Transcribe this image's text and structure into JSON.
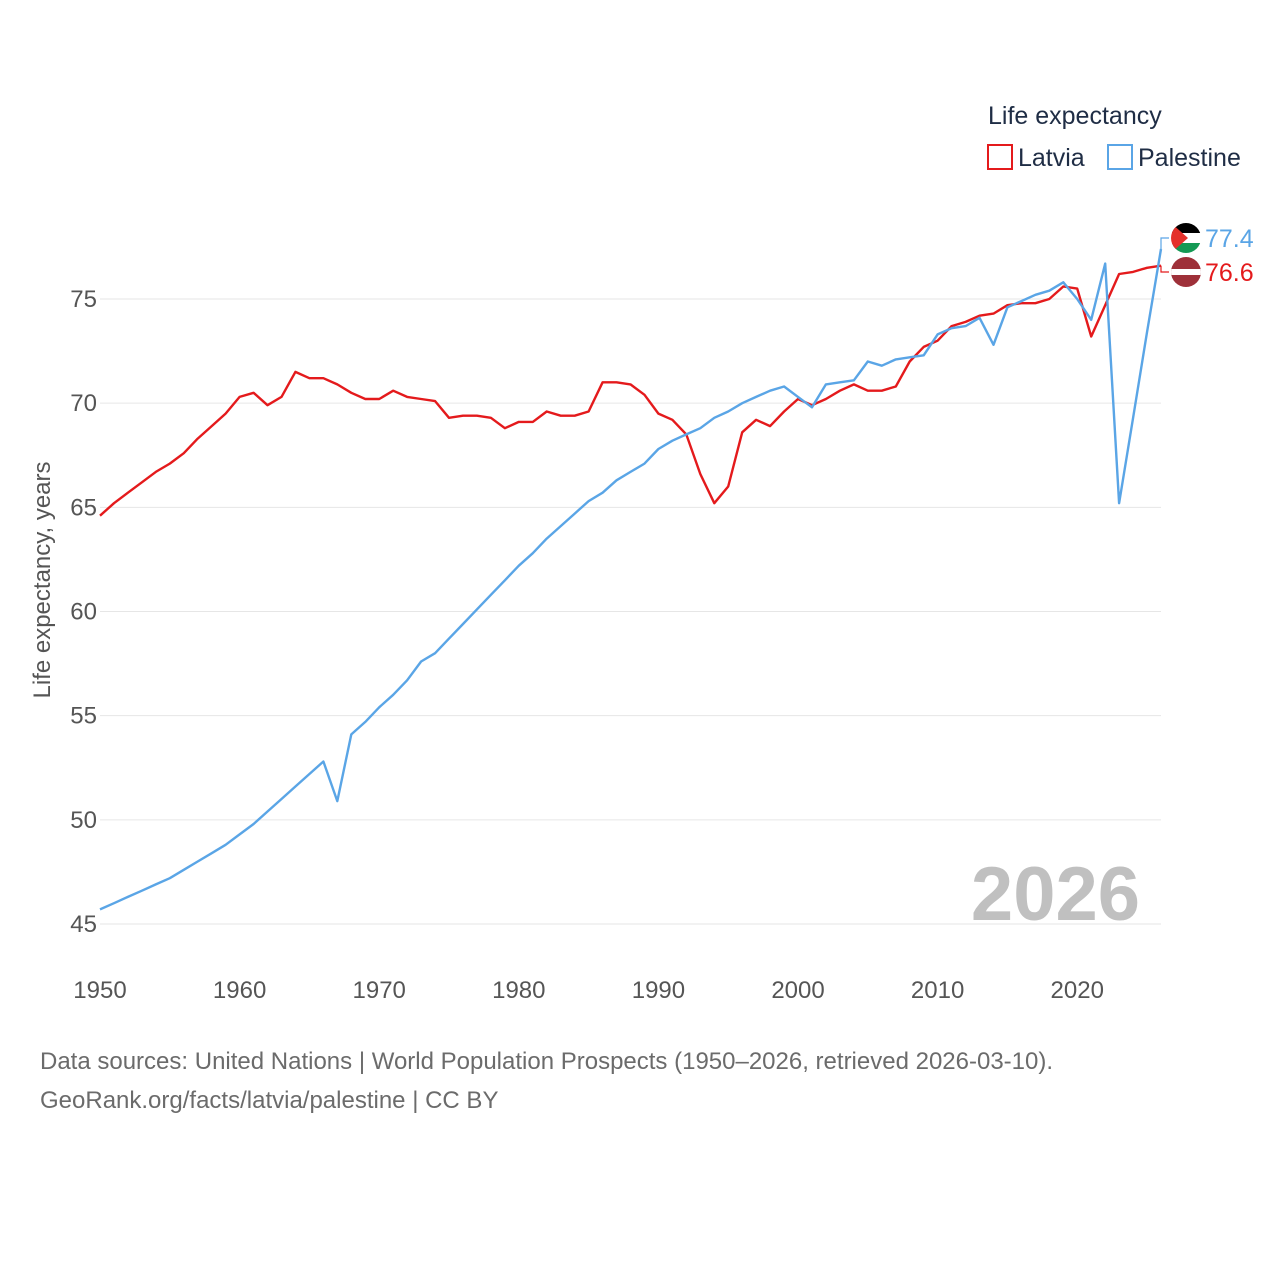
{
  "chart_data": {
    "type": "line",
    "title": "",
    "xlabel": "",
    "ylabel": "Life expectancy, years",
    "xlim": [
      1950,
      2026
    ],
    "ylim": [
      45,
      78.5
    ],
    "x_ticks": [
      1950,
      1960,
      1970,
      1980,
      1990,
      2000,
      2010,
      2020
    ],
    "y_ticks": [
      45,
      50,
      55,
      60,
      65,
      70,
      75
    ],
    "grid": "horizontal",
    "legend_title": "Life expectancy",
    "legend_position": "top-right",
    "current_year": "2026",
    "x": [
      1950,
      1951,
      1952,
      1953,
      1954,
      1955,
      1956,
      1957,
      1958,
      1959,
      1960,
      1961,
      1962,
      1963,
      1964,
      1965,
      1966,
      1967,
      1968,
      1969,
      1970,
      1971,
      1972,
      1973,
      1974,
      1975,
      1976,
      1977,
      1978,
      1979,
      1980,
      1981,
      1982,
      1983,
      1984,
      1985,
      1986,
      1987,
      1988,
      1989,
      1990,
      1991,
      1992,
      1993,
      1994,
      1995,
      1996,
      1997,
      1998,
      1999,
      2000,
      2001,
      2002,
      2003,
      2004,
      2005,
      2006,
      2007,
      2008,
      2009,
      2010,
      2011,
      2012,
      2013,
      2014,
      2015,
      2016,
      2017,
      2018,
      2019,
      2020,
      2021,
      2022,
      2023,
      2024,
      2025,
      2026
    ],
    "series": [
      {
        "name": "Latvia",
        "color": "#e41a1c",
        "end_label": "76.6",
        "flag": "latvia-flag-icon",
        "values": [
          64.6,
          65.2,
          65.7,
          66.2,
          66.7,
          67.1,
          67.6,
          68.3,
          68.9,
          69.5,
          70.3,
          70.5,
          69.9,
          70.3,
          71.5,
          71.2,
          71.2,
          70.9,
          70.5,
          70.2,
          70.2,
          70.6,
          70.3,
          70.2,
          70.1,
          69.3,
          69.4,
          69.4,
          69.3,
          68.8,
          69.1,
          69.1,
          69.6,
          69.4,
          69.4,
          69.6,
          71.0,
          71.0,
          70.9,
          70.4,
          69.5,
          69.2,
          68.5,
          66.6,
          65.2,
          66.0,
          68.6,
          69.2,
          68.9,
          69.6,
          70.2,
          69.9,
          70.2,
          70.6,
          70.9,
          70.6,
          70.6,
          70.8,
          72.0,
          72.7,
          73.0,
          73.7,
          73.9,
          74.2,
          74.3,
          74.7,
          74.8,
          74.8,
          75.0,
          75.6,
          75.5,
          73.2,
          74.7,
          76.2,
          76.3,
          76.5,
          76.6
        ]
      },
      {
        "name": "Palestine",
        "color": "#5aa5e6",
        "end_label": "77.4",
        "flag": "palestine-flag-icon",
        "values": [
          45.7,
          46.0,
          46.3,
          46.6,
          46.9,
          47.2,
          47.6,
          48.0,
          48.4,
          48.8,
          49.3,
          49.8,
          50.4,
          51.0,
          51.6,
          52.2,
          52.8,
          50.9,
          54.1,
          54.7,
          55.4,
          56.0,
          56.7,
          57.6,
          58.0,
          58.7,
          59.4,
          60.1,
          60.8,
          61.5,
          62.2,
          62.8,
          63.5,
          64.1,
          64.7,
          65.3,
          65.7,
          66.3,
          66.7,
          67.1,
          67.8,
          68.2,
          68.5,
          68.8,
          69.3,
          69.6,
          70.0,
          70.3,
          70.6,
          70.8,
          70.3,
          69.8,
          70.9,
          71.0,
          71.1,
          72.0,
          71.8,
          72.1,
          72.2,
          72.3,
          73.3,
          73.6,
          73.7,
          74.1,
          72.8,
          74.6,
          74.9,
          75.2,
          75.4,
          75.8,
          75.0,
          74.0,
          76.7,
          65.2,
          69.3,
          73.4,
          77.4
        ]
      }
    ]
  },
  "footer": {
    "source_line": "Data sources: United Nations | World Population Prospects (1950–2026, retrieved 2026-03-10).",
    "url_line": "GeoRank.org/facts/latvia/palestine | CC BY"
  }
}
